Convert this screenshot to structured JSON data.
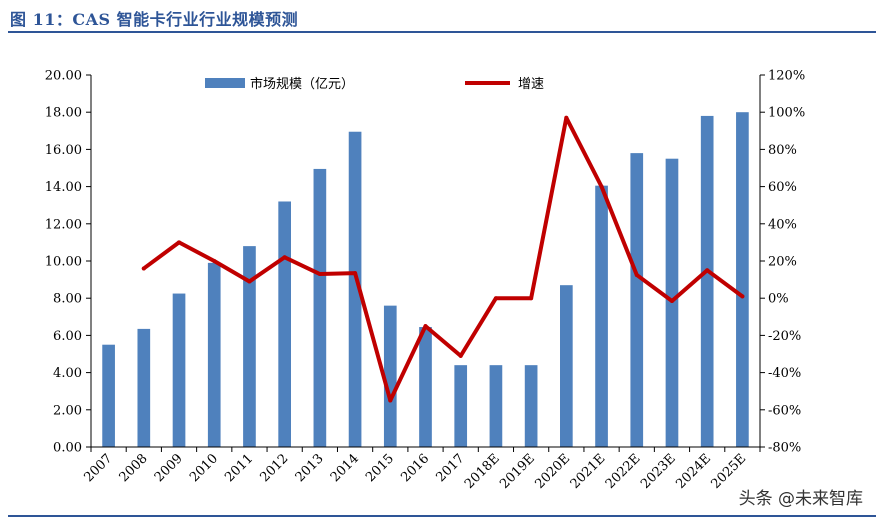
{
  "figure": {
    "title": "图 11：CAS 智能卡行业行业规模预测",
    "watermark": "头条 @未来智库"
  },
  "chart_data": {
    "type": "bar",
    "categories": [
      "2007",
      "2008",
      "2009",
      "2010",
      "2011",
      "2012",
      "2013",
      "2014",
      "2015",
      "2016",
      "2017",
      "2018E",
      "2019E",
      "2020E",
      "2021E",
      "2022E",
      "2023E",
      "2024E",
      "2025E"
    ],
    "series": [
      {
        "name": "市场规模（亿元）",
        "type": "bar",
        "axis": "left",
        "color": "#4f81bd",
        "values": [
          5.5,
          6.35,
          8.25,
          9.9,
          10.8,
          13.2,
          14.95,
          16.95,
          7.6,
          6.45,
          4.4,
          4.4,
          4.4,
          8.7,
          14.05,
          15.8,
          15.5,
          17.8,
          18.0
        ]
      },
      {
        "name": "增速",
        "type": "line",
        "axis": "right",
        "color": "#c00000",
        "values": [
          null,
          16,
          30,
          20,
          9,
          22,
          13,
          13.5,
          -55,
          -15,
          -31,
          0,
          0,
          97,
          60,
          12.5,
          -1.5,
          15,
          1
        ]
      }
    ],
    "left_axis": {
      "min": 0,
      "max": 20,
      "step": 2,
      "tick_labels": [
        "0.00",
        "2.00",
        "4.00",
        "6.00",
        "8.00",
        "10.00",
        "12.00",
        "14.00",
        "16.00",
        "18.00",
        "20.00"
      ]
    },
    "right_axis": {
      "min": -80,
      "max": 120,
      "step": 20,
      "tick_labels": [
        "-80%",
        "-60%",
        "-40%",
        "-20%",
        "0%",
        "20%",
        "40%",
        "60%",
        "80%",
        "100%",
        "120%"
      ]
    },
    "legend": {
      "placement": "top",
      "items": [
        "市场规模（亿元）",
        "增速"
      ]
    },
    "grid": false
  }
}
